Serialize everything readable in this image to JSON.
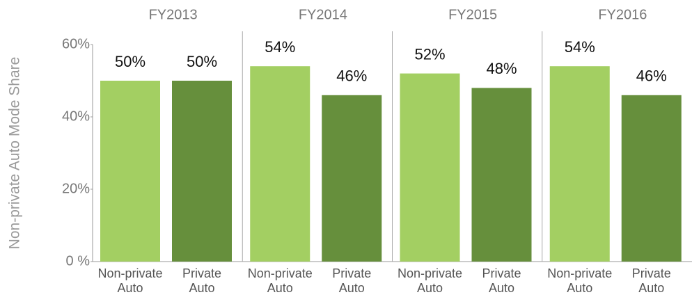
{
  "chart_data": {
    "type": "bar",
    "y_axis_label": "Non-private Auto Mode Share",
    "categories": [
      "FY2013",
      "FY2014",
      "FY2015",
      "FY2016"
    ],
    "series": [
      {
        "name": "Non-private Auto",
        "color": "#a3cf62",
        "values": [
          50,
          54,
          52,
          54
        ],
        "value_labels": [
          "50%",
          "54%",
          "52%",
          "54%"
        ]
      },
      {
        "name": "Private Auto",
        "color": "#668f3c",
        "values": [
          50,
          46,
          48,
          46
        ],
        "value_labels": [
          "50%",
          "46%",
          "48%",
          "46%"
        ]
      }
    ],
    "ylim": [
      0,
      60
    ],
    "yticks": [
      {
        "value": 0,
        "label": "0 %"
      },
      {
        "value": 20,
        "label": "20%"
      },
      {
        "value": 40,
        "label": "40%"
      },
      {
        "value": 60,
        "label": "60%"
      }
    ]
  }
}
